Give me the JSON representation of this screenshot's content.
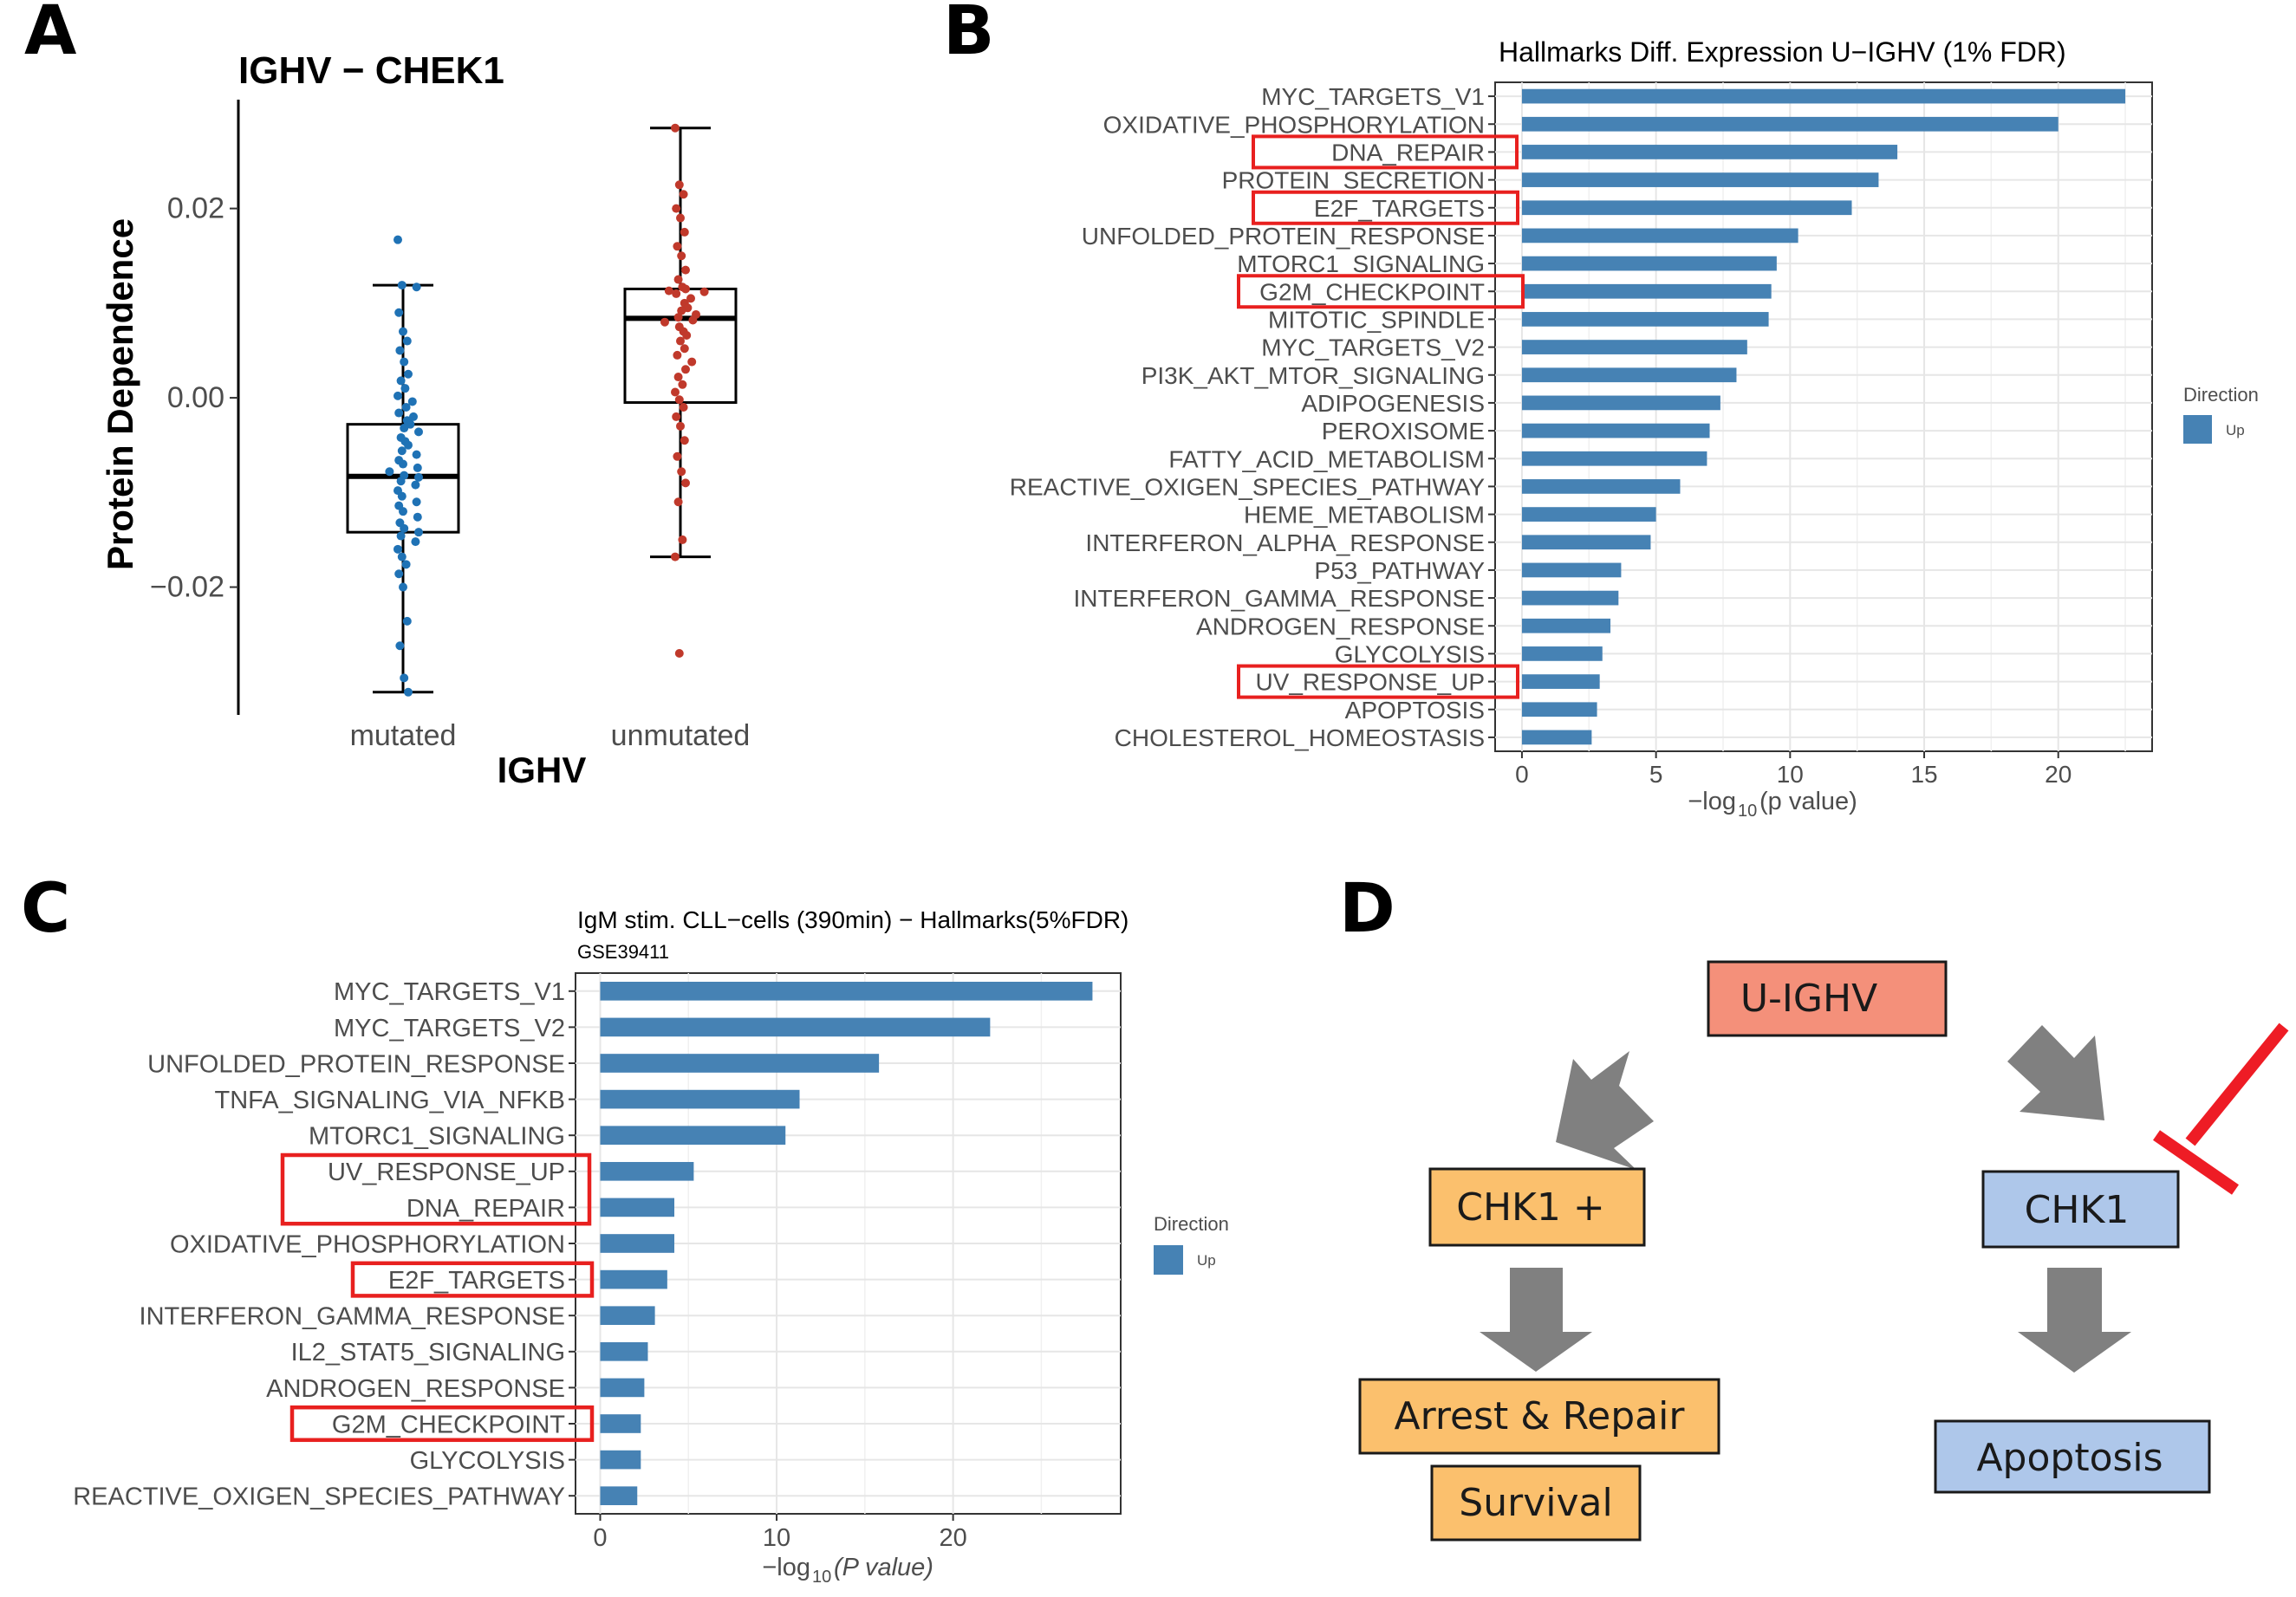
{
  "panel_letters": {
    "a": "A",
    "b": "B",
    "c": "C",
    "d": "D"
  },
  "colors": {
    "bar": "#4682b4",
    "mutated": "#1f72b5",
    "unmutated": "#c0392b",
    "highlight": "#e8201f",
    "uighv_box": "#f4907a",
    "chk1plus_box": "#fbc06d",
    "chk1_box": "#aec7ea",
    "arrow": "#808080",
    "inhibit": "#ee1c25"
  },
  "chart_data": [
    {
      "type": "scatter",
      "subtype": "boxplot-with-points",
      "title": "IGHV − CHEK1",
      "xlabel": "IGHV",
      "ylabel": "Protein Dependence",
      "categories": [
        "mutated",
        "unmutated"
      ],
      "yticks": [
        0.02,
        0.0,
        -0.02
      ],
      "ytick_labels": [
        "0.02",
        "0.00",
        "−0.02"
      ],
      "ylim": [
        -0.0335,
        0.0315
      ],
      "boxes": [
        {
          "name": "mutated",
          "whisker_low": -0.0311,
          "q1": -0.0142,
          "median": -0.0083,
          "q3": -0.0028,
          "whisker_high": 0.0119
        },
        {
          "name": "unmutated",
          "whisker_low": -0.0168,
          "q1": -0.0005,
          "median": 0.0084,
          "q3": 0.0115,
          "whisker_high": 0.0285
        }
      ],
      "points": {
        "mutated": [
          0.0167,
          0.0119,
          0.0117,
          0.009,
          0.007,
          0.006,
          0.005,
          0.0038,
          0.0025,
          0.0018,
          0.001,
          0.0002,
          -0.0004,
          -0.001,
          -0.0016,
          -0.002,
          -0.0024,
          -0.0028,
          -0.0032,
          -0.0036,
          -0.0042,
          -0.0046,
          -0.005,
          -0.0056,
          -0.006,
          -0.0066,
          -0.007,
          -0.0074,
          -0.0078,
          -0.0082,
          -0.0084,
          -0.0088,
          -0.0092,
          -0.0098,
          -0.0104,
          -0.011,
          -0.0114,
          -0.012,
          -0.0126,
          -0.0132,
          -0.0138,
          -0.0142,
          -0.0146,
          -0.0152,
          -0.016,
          -0.0168,
          -0.0176,
          -0.0186,
          -0.02,
          -0.0236,
          -0.0262,
          -0.0296,
          -0.0311
        ],
        "unmutated": [
          0.0285,
          0.0225,
          0.0215,
          0.02,
          0.019,
          0.0175,
          0.016,
          0.015,
          0.0135,
          0.0125,
          0.0117,
          0.0115,
          0.0113,
          0.0112,
          0.011,
          0.0105,
          0.01,
          0.0095,
          0.0092,
          0.0088,
          0.0085,
          0.0082,
          0.008,
          0.0075,
          0.007,
          0.0066,
          0.006,
          0.0052,
          0.0045,
          0.0038,
          0.003,
          0.0022,
          0.0014,
          0.0006,
          -0.0002,
          -0.001,
          -0.002,
          -0.003,
          -0.0045,
          -0.0062,
          -0.0078,
          -0.009,
          -0.011,
          -0.015,
          -0.0168,
          -0.027
        ]
      }
    },
    {
      "type": "bar",
      "orientation": "horizontal",
      "title": "Hallmarks Diff. Expression U−IGHV (1% FDR)",
      "xlabel_main": "−log",
      "xlabel_sub": "10",
      "xlabel_rest": "(p value)",
      "xlim": [
        -1,
        23.5
      ],
      "xticks": [
        0,
        5,
        10,
        15,
        20
      ],
      "categories": [
        "MYC_TARGETS_V1",
        "OXIDATIVE_PHOSPHORYLATION",
        "DNA_REPAIR",
        "PROTEIN_SECRETION",
        "E2F_TARGETS",
        "UNFOLDED_PROTEIN_RESPONSE",
        "MTORC1_SIGNALING",
        "G2M_CHECKPOINT",
        "MITOTIC_SPINDLE",
        "MYC_TARGETS_V2",
        "PI3K_AKT_MTOR_SIGNALING",
        "ADIPOGENESIS",
        "PEROXISOME",
        "FATTY_ACID_METABOLISM",
        "REACTIVE_OXIGEN_SPECIES_PATHWAY",
        "HEME_METABOLISM",
        "INTERFERON_ALPHA_RESPONSE",
        "P53_PATHWAY",
        "INTERFERON_GAMMA_RESPONSE",
        "ANDROGEN_RESPONSE",
        "GLYCOLYSIS",
        "UV_RESPONSE_UP",
        "APOPTOSIS",
        "CHOLESTEROL_HOMEOSTASIS"
      ],
      "values": [
        22.5,
        20.0,
        14.0,
        13.3,
        12.3,
        10.3,
        9.5,
        9.3,
        9.2,
        8.4,
        8.0,
        7.4,
        7.0,
        6.9,
        5.9,
        5.0,
        4.8,
        3.7,
        3.6,
        3.3,
        3.0,
        2.9,
        2.8,
        2.6
      ],
      "highlighted": [
        "DNA_REPAIR",
        "E2F_TARGETS",
        "G2M_CHECKPOINT",
        "UV_RESPONSE_UP"
      ],
      "legend": {
        "title": "Direction",
        "entries": [
          "Up"
        ],
        "placement": "right"
      },
      "grid": true
    },
    {
      "type": "bar",
      "orientation": "horizontal",
      "title": "IgM stim. CLL−cells (390min) − Hallmarks(5%FDR)",
      "subtitle": "GSE39411",
      "xlabel_main": "−log",
      "xlabel_sub": "10",
      "xlabel_rest": "(P value)",
      "xlim": [
        -1.4,
        29.5
      ],
      "xticks": [
        0,
        10,
        20
      ],
      "categories": [
        "MYC_TARGETS_V1",
        "MYC_TARGETS_V2",
        "UNFOLDED_PROTEIN_RESPONSE",
        "TNFA_SIGNALING_VIA_NFKB",
        "MTORC1_SIGNALING",
        "UV_RESPONSE_UP",
        "DNA_REPAIR",
        "OXIDATIVE_PHOSPHORYLATION",
        "E2F_TARGETS",
        "INTERFERON_GAMMA_RESPONSE",
        "IL2_STAT5_SIGNALING",
        "ANDROGEN_RESPONSE",
        "G2M_CHECKPOINT",
        "GLYCOLYSIS",
        "REACTIVE_OXIGEN_SPECIES_PATHWAY"
      ],
      "values": [
        27.9,
        22.1,
        15.8,
        11.3,
        10.5,
        5.3,
        4.2,
        4.2,
        3.8,
        3.1,
        2.7,
        2.5,
        2.3,
        2.3,
        2.1
      ],
      "highlight_groups": [
        [
          "UV_RESPONSE_UP",
          "DNA_REPAIR"
        ],
        [
          "E2F_TARGETS"
        ],
        [
          "G2M_CHECKPOINT"
        ]
      ],
      "legend": {
        "title": "Direction",
        "entries": [
          "Up"
        ],
        "placement": "right"
      },
      "grid": true
    }
  ],
  "diagram": {
    "uighv": "U-IGHV",
    "chk1plus": "CHK1 +",
    "chk1": "CHK1",
    "arrest": "Arrest & Repair",
    "survival": "Survival",
    "apoptosis": "Apoptosis"
  }
}
